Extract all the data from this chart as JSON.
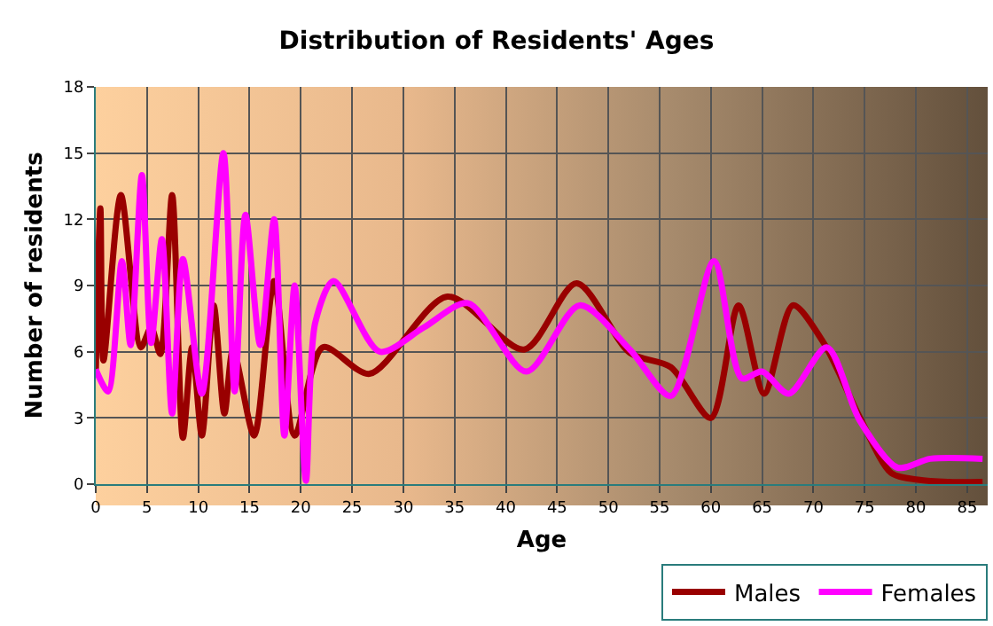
{
  "chart_data": {
    "type": "line",
    "title": "Distribution of Residents' Ages",
    "xlabel": "Age",
    "ylabel": "Number of residents",
    "xlim": [
      0,
      87
    ],
    "xticks": [
      0,
      5,
      10,
      15,
      20,
      25,
      30,
      35,
      40,
      45,
      50,
      55,
      60,
      65,
      70,
      75,
      80,
      85
    ],
    "ylim": [
      0,
      18
    ],
    "yticks": [
      0,
      3,
      6,
      9,
      12,
      15,
      18
    ],
    "grid": true,
    "legend": "bottom right",
    "marker": "none",
    "line_style": "solid",
    "series": [
      {
        "name": "Males",
        "color": "#990000",
        "x": [
          0,
          0.45,
          0.75,
          2.45,
          4.4,
          5.4,
          6.3,
          7.45,
          8.5,
          9.4,
          10.35,
          11.5,
          12.55,
          13.4,
          15.45,
          17.4,
          19.4,
          22.15,
          26.7,
          34.3,
          41.8,
          46.9,
          52.1,
          56.1,
          60,
          62.7,
          65.2,
          68,
          71,
          74.5,
          77.6,
          80.2,
          83.1,
          86.5
        ],
        "values": [
          5.0,
          12.5,
          5.6,
          13.1,
          6.2,
          7.1,
          5.9,
          13.1,
          2.1,
          6.2,
          2.2,
          8.1,
          3.2,
          6.1,
          2.2,
          9.2,
          2.2,
          6.2,
          5.0,
          8.5,
          6.1,
          9.1,
          5.95,
          5.3,
          3.0,
          8.1,
          4.1,
          8.1,
          6.4,
          3.05,
          0.5,
          0.2,
          0.1,
          0.1
        ]
      },
      {
        "name": "Females",
        "color": "#ff00ff",
        "x": [
          0,
          1.2,
          2.55,
          3.4,
          4.5,
          5.4,
          6.45,
          7.45,
          8.5,
          10.35,
          12.45,
          13.55,
          14.6,
          16.05,
          17.4,
          18.4,
          19.4,
          20.5,
          21.4,
          23.2,
          27.7,
          32,
          36.3,
          42,
          47.2,
          52.1,
          56.1,
          60.3,
          63,
          65,
          67.6,
          71.3,
          74.5,
          78.2,
          81.4,
          86.5
        ],
        "values": [
          5.2,
          4.2,
          10.1,
          6.3,
          14.0,
          6.4,
          11.1,
          3.2,
          10.2,
          4.1,
          15.0,
          4.2,
          12.2,
          6.3,
          12.0,
          2.2,
          9.0,
          0.15,
          7.3,
          9.2,
          6.0,
          7.1,
          8.2,
          5.1,
          8.1,
          6.1,
          4.0,
          10.1,
          4.8,
          5.1,
          4.1,
          6.2,
          2.9,
          0.75,
          1.15,
          1.15
        ]
      }
    ]
  }
}
